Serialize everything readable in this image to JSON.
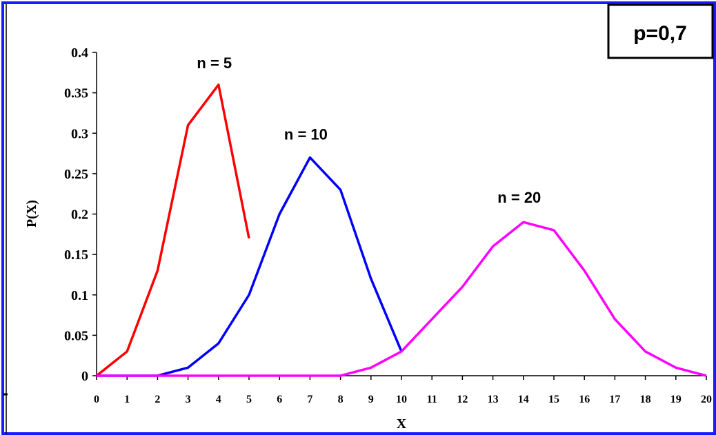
{
  "chart_data": {
    "type": "line",
    "title_box": "p=0,7",
    "xlabel": "X",
    "ylabel": "P(X)",
    "xlim": [
      0,
      20
    ],
    "ylim": [
      0,
      0.4
    ],
    "x_ticks": [
      "0",
      "1",
      "2",
      "3",
      "4",
      "5",
      "6",
      "7",
      "8",
      "9",
      "10",
      "11",
      "12",
      "13",
      "14",
      "15",
      "16",
      "17",
      "18",
      "19",
      "20"
    ],
    "y_ticks": [
      "0",
      "0.05",
      "0.1",
      "0.15",
      "0.2",
      "0.25",
      "0.3",
      "0.35",
      "0.4"
    ],
    "grid": false,
    "series": [
      {
        "name": "n = 5",
        "color": "#ff0000",
        "x": [
          0,
          1,
          2,
          3,
          4,
          5
        ],
        "values": [
          0.0,
          0.03,
          0.13,
          0.31,
          0.36,
          0.17
        ]
      },
      {
        "name": "n = 10",
        "color": "#0000ff",
        "x": [
          0,
          1,
          2,
          3,
          4,
          5,
          6,
          7,
          8,
          9,
          10
        ],
        "values": [
          0.0,
          0.0,
          0.0,
          0.01,
          0.04,
          0.1,
          0.2,
          0.27,
          0.23,
          0.12,
          0.03
        ]
      },
      {
        "name": "n = 20",
        "color": "#ff00ff",
        "x": [
          0,
          1,
          2,
          3,
          4,
          5,
          6,
          7,
          8,
          9,
          10,
          11,
          12,
          13,
          14,
          15,
          16,
          17,
          18,
          19,
          20
        ],
        "values": [
          0,
          0,
          0,
          0,
          0,
          0,
          0,
          0,
          0,
          0.01,
          0.03,
          0.07,
          0.11,
          0.16,
          0.19,
          0.18,
          0.13,
          0.07,
          0.03,
          0.01,
          0.0
        ]
      }
    ]
  },
  "colors": {
    "frame": "#1a1aff",
    "axis": "#000000"
  }
}
